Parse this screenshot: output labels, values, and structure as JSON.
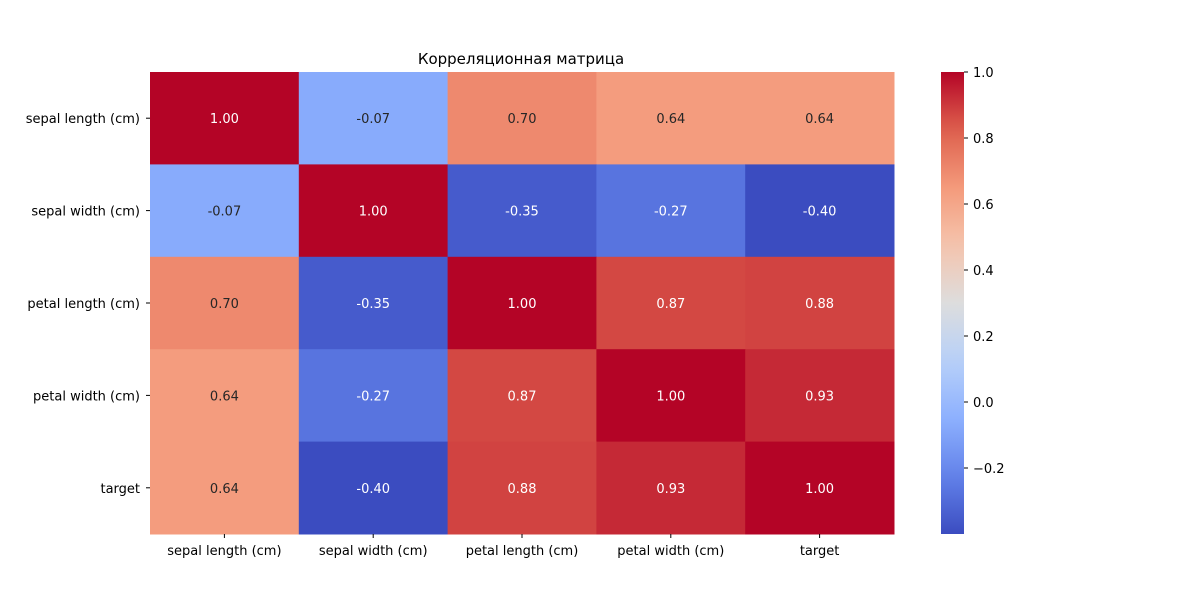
{
  "chart_data": {
    "type": "heatmap",
    "title": "Корреляционная матрица",
    "labels": [
      "sepal length (cm)",
      "sepal width (cm)",
      "petal length (cm)",
      "petal width (cm)",
      "target"
    ],
    "values": [
      [
        1.0,
        -0.07,
        0.7,
        0.64,
        0.64
      ],
      [
        -0.07,
        1.0,
        -0.35,
        -0.27,
        -0.4
      ],
      [
        0.7,
        -0.35,
        1.0,
        0.87,
        0.88
      ],
      [
        0.64,
        -0.27,
        0.87,
        1.0,
        0.93
      ],
      [
        0.64,
        -0.4,
        0.88,
        0.93,
        1.0
      ]
    ],
    "value_labels": [
      [
        "1.00",
        "-0.07",
        "0.70",
        "0.64",
        "0.64"
      ],
      [
        "-0.07",
        "1.00",
        "-0.35",
        "-0.27",
        "-0.40"
      ],
      [
        "0.70",
        "-0.35",
        "1.00",
        "0.87",
        "0.88"
      ],
      [
        "0.64",
        "-0.27",
        "0.87",
        "1.00",
        "0.93"
      ],
      [
        "0.64",
        "-0.40",
        "0.88",
        "0.93",
        "1.00"
      ]
    ],
    "colorscale": "coolwarm",
    "vmin": -0.4,
    "vmax": 1.0,
    "colorbar_ticks": [
      1.0,
      0.8,
      0.6,
      0.4,
      0.2,
      0.0,
      -0.2
    ],
    "colorbar_tick_labels": [
      "1.0",
      "0.8",
      "0.6",
      "0.4",
      "0.2",
      "0.0",
      "−0.2"
    ],
    "legend_position": "right"
  }
}
